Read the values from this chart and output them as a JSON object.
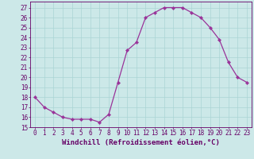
{
  "x": [
    0,
    1,
    2,
    3,
    4,
    5,
    6,
    7,
    8,
    9,
    10,
    11,
    12,
    13,
    14,
    15,
    16,
    17,
    18,
    19,
    20,
    21,
    22,
    23
  ],
  "y": [
    18,
    17,
    16.5,
    16,
    15.8,
    15.8,
    15.8,
    15.5,
    16.3,
    19.5,
    22.7,
    23.5,
    26,
    26.5,
    27,
    27,
    27,
    26.5,
    26,
    25,
    23.8,
    21.5,
    20,
    19.5
  ],
  "line_color": "#993399",
  "marker_color": "#993399",
  "bg_color": "#cce8e8",
  "grid_color": "#aad4d4",
  "xlabel": "Windchill (Refroidissement éolien,°C)",
  "xlim": [
    -0.5,
    23.5
  ],
  "ylim": [
    15,
    27.6
  ],
  "yticks": [
    15,
    16,
    17,
    18,
    19,
    20,
    21,
    22,
    23,
    24,
    25,
    26,
    27
  ],
  "xticks": [
    0,
    1,
    2,
    3,
    4,
    5,
    6,
    7,
    8,
    9,
    10,
    11,
    12,
    13,
    14,
    15,
    16,
    17,
    18,
    19,
    20,
    21,
    22,
    23
  ],
  "tick_label_fontsize": 5.5,
  "xlabel_fontsize": 6.5,
  "line_color_hex": "#993399",
  "text_color": "#660066",
  "spine_color": "#660066"
}
